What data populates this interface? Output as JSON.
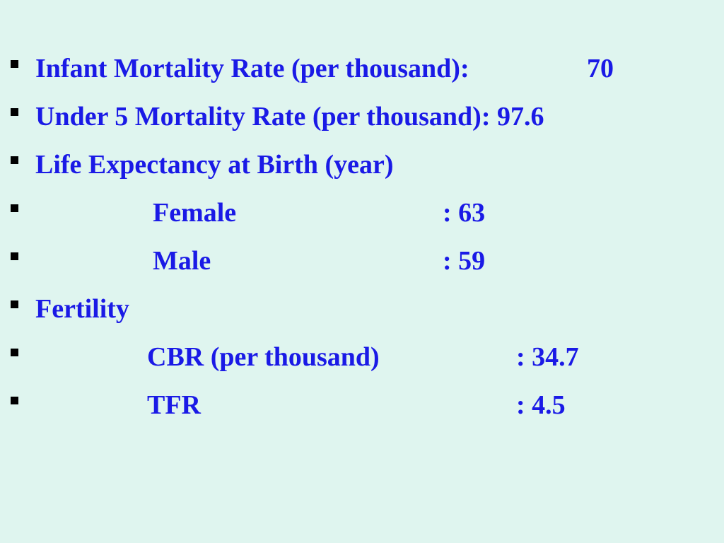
{
  "colors": {
    "background": "#dff5ef",
    "text": "#1a1ae6",
    "bullet": "#000000"
  },
  "items": [
    {
      "label": "Infant Mortality Rate (per thousand):",
      "value": "70"
    },
    {
      "label": "Under 5 Mortality Rate (per thousand): 97.6"
    },
    {
      "label": "Life Expectancy at Birth (year)"
    },
    {
      "label": "Female",
      "value": ": 63"
    },
    {
      "label": "Male",
      "value": ": 59"
    },
    {
      "label": "Fertility"
    },
    {
      "label": "CBR (per thousand)",
      "value": ": 34.7"
    },
    {
      "label": "TFR",
      "value": ": 4.5"
    }
  ]
}
